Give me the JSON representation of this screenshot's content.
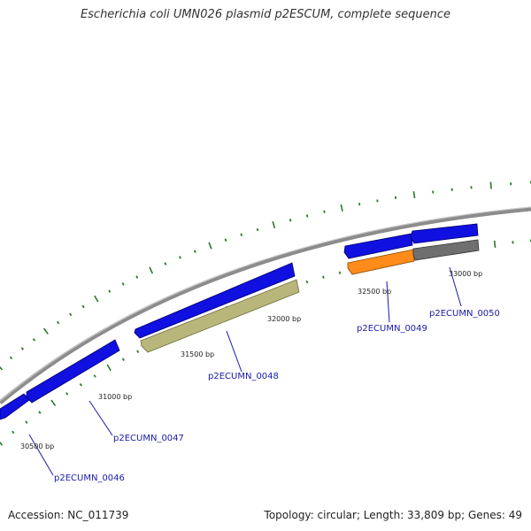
{
  "header": {
    "title": "Escherichia coli UMN026 plasmid p2ESCUM, complete sequence"
  },
  "footer": {
    "accession": "Accession: NC_011739",
    "summary": "Topology: circular; Length: 33,809 bp; Genes: 49"
  },
  "colors": {
    "backbone": "#8a8a8a",
    "cds_forward": "#1010e0",
    "cds_reverse_khaki": "#b8b67a",
    "cds_reverse_orange": "#ff8c1a",
    "cds_reverse_gray": "#6f6f6f",
    "tick": "#2a7a2a",
    "gene_label": "#1a1aa6"
  },
  "map": {
    "position_labels": [
      "30500 bp",
      "31000 bp",
      "31500 bp",
      "32000 bp",
      "32500 bp",
      "33000 bp"
    ],
    "gene_labels": [
      "p2ECUMN_0046",
      "p2ECUMN_0047",
      "p2ECUMN_0048",
      "p2ECUMN_0049",
      "p2ECUMN_0050"
    ]
  }
}
